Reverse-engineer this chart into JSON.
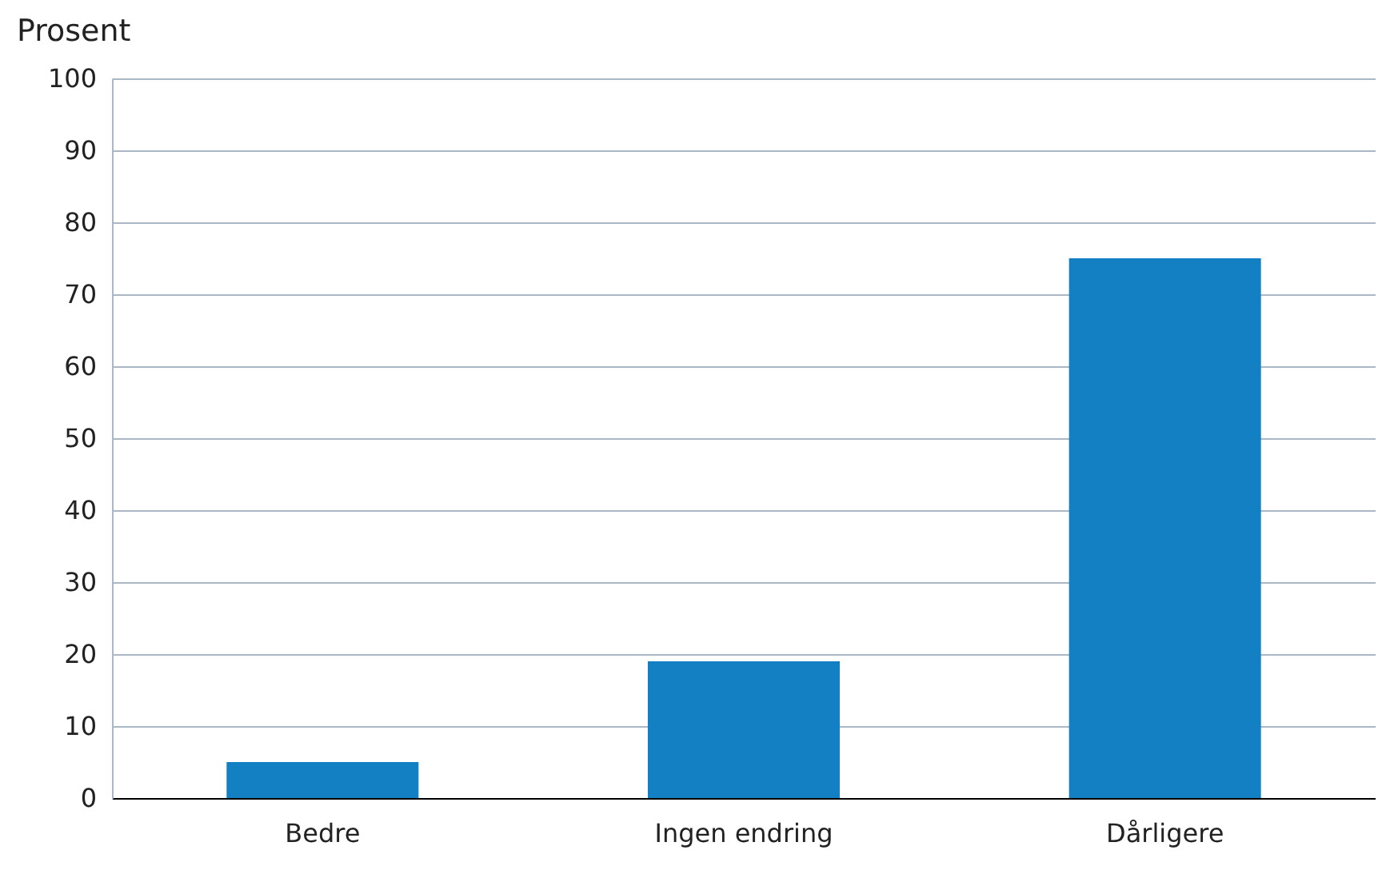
{
  "chart_data": {
    "type": "bar",
    "ylabel": "Prosent",
    "categories": [
      "Bedre",
      "Ingen endring",
      "Dårligere"
    ],
    "values": [
      5,
      19,
      75
    ],
    "color": "#1380c4",
    "ylim": [
      0,
      100
    ],
    "yticks": [
      0,
      10,
      20,
      30,
      40,
      50,
      60,
      70,
      80,
      90,
      100
    ],
    "grid": "y"
  }
}
